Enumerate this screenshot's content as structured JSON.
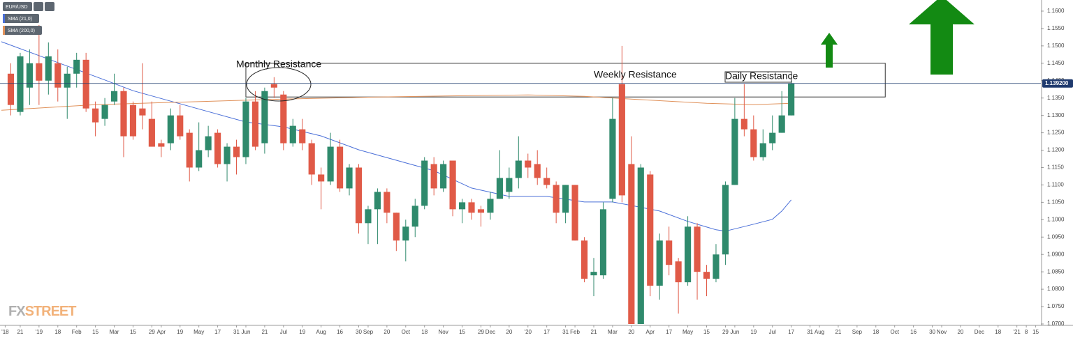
{
  "chart_data": {
    "type": "candlestick",
    "symbol": "EUR/USD",
    "up_color": "#2f8a6c",
    "down_color": "#e05a47",
    "xlim": [
      -0.15,
      110.55
    ],
    "ylim": [
      1.0698,
      1.1632
    ],
    "x": [
      1,
      2,
      3,
      4,
      5,
      6,
      7,
      8,
      9,
      10,
      11,
      12,
      13,
      14,
      15,
      16,
      17,
      18,
      19,
      20,
      21,
      22,
      23,
      24,
      25,
      26,
      27,
      28,
      29,
      30,
      31,
      32,
      33,
      34,
      35,
      36,
      37,
      38,
      39,
      40,
      41,
      42,
      43,
      44,
      45,
      46,
      47,
      48,
      49,
      50,
      51,
      52,
      53,
      54,
      55,
      56,
      57,
      58,
      59,
      60,
      61,
      62,
      63,
      64,
      65,
      66,
      67,
      68,
      69,
      70,
      71,
      72,
      73,
      74,
      75,
      76,
      77,
      78,
      79,
      80,
      81,
      82,
      83,
      84
    ],
    "open": [
      1.142,
      1.131,
      1.138,
      1.145,
      1.14,
      1.145,
      1.138,
      1.142,
      1.146,
      1.132,
      1.129,
      1.134,
      1.137,
      1.133,
      1.132,
      1.129,
      1.122,
      1.122,
      1.13,
      1.125,
      1.115,
      1.12,
      1.125,
      1.116,
      1.121,
      1.118,
      1.134,
      1.122,
      1.139,
      1.136,
      1.122,
      1.126,
      1.122,
      1.113,
      1.111,
      1.121,
      1.109,
      1.115,
      1.099,
      1.103,
      1.108,
      1.102,
      1.094,
      1.098,
      1.104,
      1.116,
      1.109,
      1.117,
      1.103,
      1.105,
      1.103,
      1.102,
      1.106,
      1.108,
      1.112,
      1.117,
      1.116,
      1.112,
      1.11,
      1.102,
      1.11,
      1.094,
      1.084,
      1.084,
      1.106,
      1.139,
      1.116,
      1.07,
      1.113,
      1.081,
      1.094,
      1.088,
      1.082,
      1.098,
      1.085,
      1.083,
      1.09,
      1.11,
      1.129,
      1.126,
      1.118,
      1.122,
      1.125,
      1.13
    ],
    "high": [
      1.145,
      1.148,
      1.149,
      1.156,
      1.151,
      1.149,
      1.144,
      1.148,
      1.148,
      1.134,
      1.135,
      1.142,
      1.138,
      1.134,
      1.145,
      1.134,
      1.123,
      1.132,
      1.133,
      1.126,
      1.128,
      1.127,
      1.126,
      1.122,
      1.123,
      1.135,
      1.137,
      1.138,
      1.141,
      1.137,
      1.129,
      1.129,
      1.123,
      1.115,
      1.125,
      1.123,
      1.116,
      1.116,
      1.104,
      1.109,
      1.109,
      1.102,
      1.1,
      1.106,
      1.118,
      1.118,
      1.117,
      1.117,
      1.106,
      1.106,
      1.104,
      1.108,
      1.12,
      1.115,
      1.124,
      1.119,
      1.12,
      1.115,
      1.111,
      1.11,
      1.11,
      1.095,
      1.089,
      1.105,
      1.135,
      1.15,
      1.124,
      1.116,
      1.114,
      1.096,
      1.098,
      1.089,
      1.101,
      1.099,
      1.087,
      1.093,
      1.111,
      1.135,
      1.139,
      1.13,
      1.126,
      1.13,
      1.137,
      1.14
    ],
    "low": [
      1.13,
      1.13,
      1.133,
      1.133,
      1.136,
      1.134,
      1.129,
      1.138,
      1.131,
      1.124,
      1.127,
      1.133,
      1.118,
      1.123,
      1.126,
      1.121,
      1.118,
      1.12,
      1.123,
      1.111,
      1.114,
      1.118,
      1.115,
      1.111,
      1.113,
      1.116,
      1.12,
      1.119,
      1.135,
      1.12,
      1.121,
      1.12,
      1.11,
      1.103,
      1.11,
      1.108,
      1.107,
      1.096,
      1.093,
      1.093,
      1.099,
      1.091,
      1.088,
      1.095,
      1.103,
      1.107,
      1.108,
      1.101,
      1.099,
      1.1,
      1.098,
      1.1,
      1.106,
      1.106,
      1.109,
      1.112,
      1.11,
      1.109,
      1.099,
      1.099,
      1.094,
      1.082,
      1.078,
      1.083,
      1.105,
      1.105,
      1.07,
      1.07,
      1.078,
      1.077,
      1.084,
      1.073,
      1.081,
      1.077,
      1.078,
      1.082,
      1.087,
      1.11,
      1.124,
      1.117,
      1.117,
      1.12,
      1.125,
      1.13
    ],
    "close": [
      1.133,
      1.147,
      1.145,
      1.14,
      1.147,
      1.138,
      1.142,
      1.146,
      1.132,
      1.128,
      1.133,
      1.137,
      1.124,
      1.124,
      1.13,
      1.121,
      1.121,
      1.13,
      1.124,
      1.115,
      1.12,
      1.124,
      1.116,
      1.121,
      1.118,
      1.134,
      1.121,
      1.137,
      1.138,
      1.122,
      1.127,
      1.122,
      1.113,
      1.111,
      1.121,
      1.109,
      1.115,
      1.099,
      1.103,
      1.108,
      1.102,
      1.094,
      1.098,
      1.104,
      1.117,
      1.109,
      1.116,
      1.103,
      1.105,
      1.102,
      1.102,
      1.106,
      1.112,
      1.112,
      1.117,
      1.115,
      1.112,
      1.11,
      1.102,
      1.11,
      1.094,
      1.083,
      1.085,
      1.103,
      1.129,
      1.107,
      1.07,
      1.115,
      1.081,
      1.094,
      1.087,
      1.082,
      1.098,
      1.085,
      1.083,
      1.09,
      1.11,
      1.129,
      1.126,
      1.118,
      1.122,
      1.125,
      1.13,
      1.1392
    ],
    "overlays": [
      {
        "name": "SMA (21,0)",
        "color": "#4a6fd8",
        "x": [
          0,
          5,
          8,
          11,
          14,
          18,
          22,
          26,
          30,
          34,
          38,
          42,
          46,
          50,
          54,
          58,
          62,
          65,
          67,
          70,
          73,
          76,
          77,
          80,
          82,
          83,
          84
        ],
        "values": [
          1.1512,
          1.1462,
          1.1432,
          1.1402,
          1.1371,
          1.1341,
          1.1311,
          1.1281,
          1.1267,
          1.1241,
          1.1201,
          1.1171,
          1.1141,
          1.1091,
          1.1067,
          1.1067,
          1.1051,
          1.1051,
          1.1041,
          1.1025,
          1.0995,
          1.0971,
          1.0967,
          1.0987,
          1.1001,
          1.1025,
          1.1057
        ]
      },
      {
        "name": "SMA (200,0)",
        "color": "#e0915a",
        "x": [
          0,
          10,
          20,
          30,
          40,
          50,
          56,
          62,
          67,
          75,
          80,
          84
        ],
        "values": [
          1.1315,
          1.1331,
          1.1339,
          1.1347,
          1.1353,
          1.1357,
          1.1359,
          1.1355,
          1.1347,
          1.1335,
          1.1331,
          1.1335
        ]
      }
    ],
    "current_price": {
      "value": 1.1392,
      "label": "1.139200",
      "color": "#1f3a6e"
    },
    "resistance_zone": {
      "xlim": [
        26,
        94
      ],
      "ylim": [
        1.1353,
        1.145
      ]
    },
    "annotations": [
      "Monthly Resistance",
      "Weekly Resistance",
      "Daily Resistance"
    ],
    "watermark": [
      "FX",
      "STREET"
    ],
    "yticks": [
      {
        "value": 1.07,
        "label": "1.0700"
      },
      {
        "value": 1.075,
        "label": "1.0750"
      },
      {
        "value": 1.08,
        "label": "1.0800"
      },
      {
        "value": 1.085,
        "label": "1.0850"
      },
      {
        "value": 1.09,
        "label": "1.0900"
      },
      {
        "value": 1.095,
        "label": "1.0950"
      },
      {
        "value": 1.1,
        "label": "1.1000"
      },
      {
        "value": 1.105,
        "label": "1.1050"
      },
      {
        "value": 1.11,
        "label": "1.1100"
      },
      {
        "value": 1.115,
        "label": "1.1150"
      },
      {
        "value": 1.12,
        "label": "1.1200"
      },
      {
        "value": 1.125,
        "label": "1.1250"
      },
      {
        "value": 1.13,
        "label": "1.1300"
      },
      {
        "value": 1.135,
        "label": "1.1350"
      },
      {
        "value": 1.14,
        "label": "1.1400"
      },
      {
        "value": 1.145,
        "label": "1.1450"
      },
      {
        "value": 1.15,
        "label": "1.1500"
      },
      {
        "value": 1.155,
        "label": "1.1550"
      },
      {
        "value": 1.16,
        "label": "1.1600"
      }
    ],
    "xticks": [
      {
        "value": 0.4,
        "label": "'18"
      },
      {
        "value": 2,
        "label": "21"
      },
      {
        "value": 4,
        "label": "'19"
      },
      {
        "value": 6,
        "label": "18"
      },
      {
        "value": 8,
        "label": "Feb"
      },
      {
        "value": 10,
        "label": "15"
      },
      {
        "value": 12,
        "label": "Mar"
      },
      {
        "value": 14,
        "label": "15"
      },
      {
        "value": 16,
        "label": "29"
      },
      {
        "value": 17,
        "label": "Apr"
      },
      {
        "value": 19,
        "label": "19"
      },
      {
        "value": 21,
        "label": "May"
      },
      {
        "value": 23,
        "label": "17"
      },
      {
        "value": 25,
        "label": "31"
      },
      {
        "value": 26,
        "label": "Jun"
      },
      {
        "value": 28,
        "label": "21"
      },
      {
        "value": 30,
        "label": "Jul"
      },
      {
        "value": 32,
        "label": "19"
      },
      {
        "value": 34,
        "label": "Aug"
      },
      {
        "value": 36,
        "label": "16"
      },
      {
        "value": 38,
        "label": "30"
      },
      {
        "value": 39,
        "label": "Sep"
      },
      {
        "value": 41,
        "label": "20"
      },
      {
        "value": 43,
        "label": "Oct"
      },
      {
        "value": 45,
        "label": "18"
      },
      {
        "value": 47,
        "label": "Nov"
      },
      {
        "value": 49,
        "label": "15"
      },
      {
        "value": 51,
        "label": "29"
      },
      {
        "value": 52,
        "label": "Dec"
      },
      {
        "value": 54,
        "label": "20"
      },
      {
        "value": 56,
        "label": "'20"
      },
      {
        "value": 58,
        "label": "17"
      },
      {
        "value": 60,
        "label": "31"
      },
      {
        "value": 61,
        "label": "Feb"
      },
      {
        "value": 63,
        "label": "21"
      },
      {
        "value": 65,
        "label": "Mar"
      },
      {
        "value": 67,
        "label": "20"
      },
      {
        "value": 69,
        "label": "Apr"
      },
      {
        "value": 71,
        "label": "17"
      },
      {
        "value": 73,
        "label": "May"
      },
      {
        "value": 75,
        "label": "15"
      },
      {
        "value": 77,
        "label": "29"
      },
      {
        "value": 78,
        "label": "Jun"
      },
      {
        "value": 80,
        "label": "19"
      },
      {
        "value": 82,
        "label": "Jul"
      },
      {
        "value": 84,
        "label": "17"
      },
      {
        "value": 86,
        "label": "31"
      },
      {
        "value": 87,
        "label": "Aug"
      },
      {
        "value": 89,
        "label": "21"
      },
      {
        "value": 91,
        "label": "Sep"
      },
      {
        "value": 93,
        "label": "18"
      },
      {
        "value": 95,
        "label": "Oct"
      },
      {
        "value": 97,
        "label": "16"
      },
      {
        "value": 99,
        "label": "30"
      },
      {
        "value": 100,
        "label": "Nov"
      },
      {
        "value": 102,
        "label": "20"
      },
      {
        "value": 104,
        "label": "Dec"
      },
      {
        "value": 106,
        "label": "18"
      },
      {
        "value": 108,
        "label": "'21"
      },
      {
        "value": 109,
        "label": "8"
      },
      {
        "value": 110,
        "label": "15"
      }
    ]
  }
}
